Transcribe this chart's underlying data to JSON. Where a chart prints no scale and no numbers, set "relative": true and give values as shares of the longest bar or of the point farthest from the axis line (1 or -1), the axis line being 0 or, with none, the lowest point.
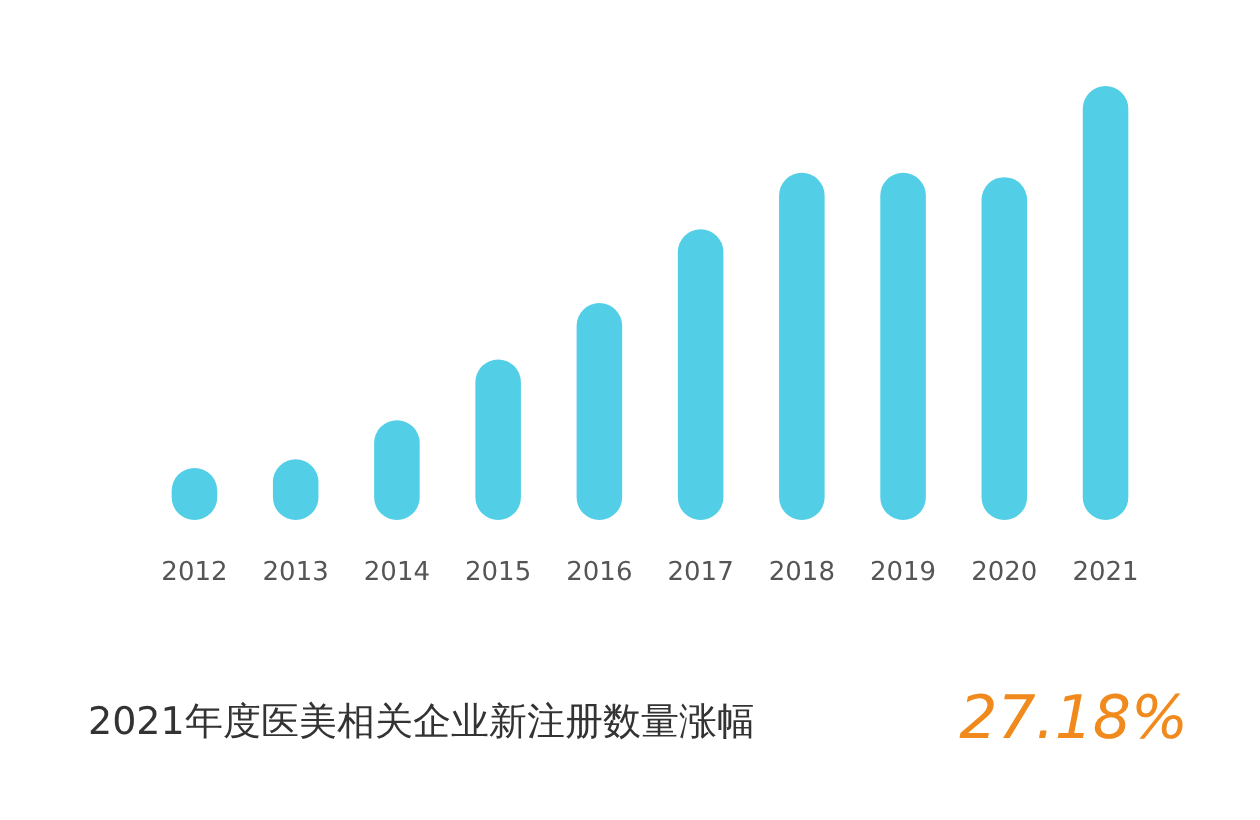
{
  "chart_data": {
    "type": "bar",
    "relative": true,
    "title": "2021年度医美相关企业新注册数量涨幅",
    "annotations": [
      "27.18%"
    ],
    "categories": [
      "2012",
      "2013",
      "2014",
      "2015",
      "2016",
      "2017",
      "2018",
      "2019",
      "2020",
      "2021"
    ],
    "series": [
      {
        "color": "#52cfe6",
        "values": [
          0.12,
          0.14,
          0.23,
          0.37,
          0.5,
          0.67,
          0.8,
          0.8,
          0.79,
          1
        ]
      }
    ]
  }
}
